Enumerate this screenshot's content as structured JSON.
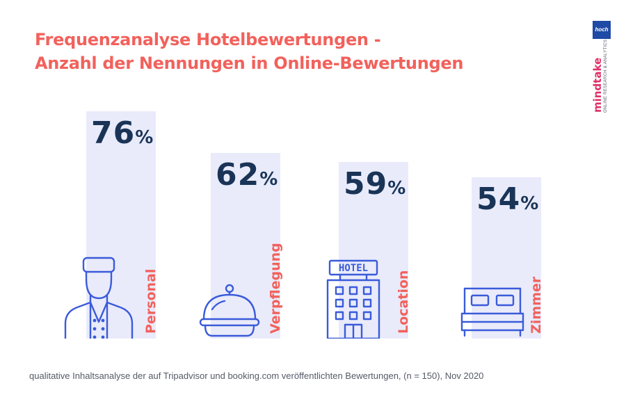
{
  "title_lines": [
    "Frequenzanalyse Hotelbewertungen -",
    "Anzahl der Nennungen in Online-Bewertungen"
  ],
  "chart_data": {
    "type": "bar",
    "categories": [
      "Personal",
      "Verpflegung",
      "Location",
      "Zimmer"
    ],
    "values": [
      76,
      62,
      59,
      54
    ],
    "value_labels": [
      "76",
      "62",
      "59",
      "54"
    ],
    "unit": "%",
    "icons": [
      "bellboy-icon",
      "cloche-icon",
      "hotel-building-icon",
      "bed-icon"
    ],
    "colors": {
      "bar": "#e9ebfb",
      "value": "#1a3457",
      "category": "#f2615c",
      "icon": "#3a5bd9"
    }
  },
  "footnote": "qualitative Inhaltsanalyse der auf Tripadvisor und booking.com veröffentlichten Bewertungen, (n = 150), Nov 2020",
  "hotel_sign": "HOTEL",
  "logos": {
    "hoch": "hoch",
    "brand": "mindtake",
    "brand_tagline": "ONLINE RESEARCH & ANALYTICS"
  }
}
